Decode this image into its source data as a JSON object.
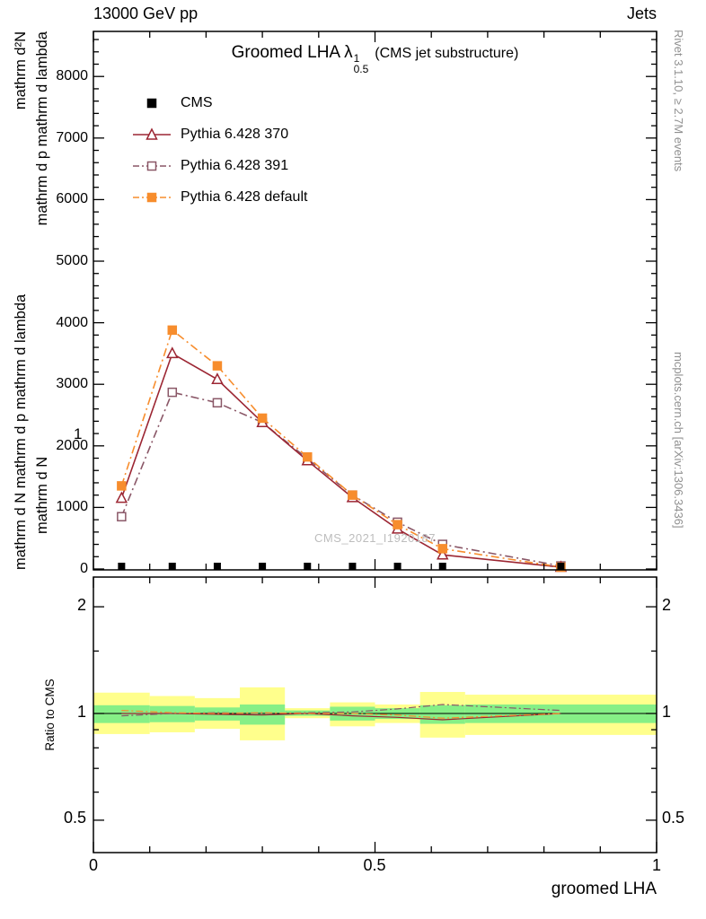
{
  "header": {
    "left_label": "13000 GeV pp",
    "right_label": "Jets"
  },
  "title": {
    "prefix": "Groomed LHA",
    "lambda": "λ",
    "sup": "1",
    "sub": "0.5",
    "suffix": "(CMS jet substructure)"
  },
  "ylabel": {
    "outer_bottom": "mathrm d N mathrm d p mathrm d lambda",
    "outer_top": "mathrm d²N",
    "inner_bottom": "mathrm d N",
    "inner_top": "mathrm d p mathrm d lambda",
    "frac_one": "1"
  },
  "right_margin": {
    "top_text": "Rivet 3.1.10, ≥ 2.7M events",
    "bottom_text": "mcplots.cern.ch [arXiv:1306.3436]"
  },
  "watermark": "CMS_2021_I1920187",
  "xaxis": {
    "label": "groomed LHA",
    "tick_labels": [
      "0",
      "0.5",
      "1"
    ],
    "ticks": [
      0,
      0.5,
      1
    ]
  },
  "ratio_panel": {
    "ylabel": "Ratio to CMS",
    "ytick_labels": [
      "2",
      "1",
      "0.5"
    ],
    "yticks": [
      2,
      1,
      0.5
    ]
  },
  "colors": {
    "cms": "#000000",
    "pythia_370": "#9c2633",
    "pythia_391": "#8a5767",
    "pythia_default": "#f78d2d",
    "band_yellow": "#ffff8c",
    "band_green": "#86ef86",
    "frame": "#000000",
    "watermark_gray": "#bdbdbd",
    "side_text_gray": "#909090"
  },
  "chart_data": {
    "type": "line",
    "title": "Groomed LHA lambda_0.5^1 (CMS jet substructure)",
    "xlabel": "groomed LHA",
    "xlim": [
      0,
      1
    ],
    "ylim": [
      0,
      8732
    ],
    "yticks": [
      0,
      1000,
      2000,
      3000,
      4000,
      5000,
      6000,
      7000,
      8000
    ],
    "ytick_labels": [
      "0",
      "1000",
      "2000",
      "3000",
      "4000",
      "5000",
      "6000",
      "7000",
      "8000"
    ],
    "x": [
      0.05,
      0.14,
      0.22,
      0.3,
      0.38,
      0.46,
      0.54,
      0.62,
      0.83
    ],
    "series": [
      {
        "name": "CMS",
        "color": "#000000",
        "marker": "square",
        "marker_filled": true,
        "line": "none",
        "values": [
          0,
          0,
          0,
          0,
          0,
          0,
          0,
          0,
          0
        ]
      },
      {
        "name": "Pythia 6.428 370",
        "color": "#9c2633",
        "marker": "triangle",
        "marker_filled": false,
        "line": "solid",
        "values": [
          1150,
          3500,
          3080,
          2380,
          1760,
          1160,
          650,
          230,
          30
        ]
      },
      {
        "name": "Pythia 6.428 391",
        "color": "#8a5767",
        "marker": "square",
        "marker_filled": false,
        "line": "dashdot",
        "values": [
          850,
          2870,
          2700,
          2380,
          1790,
          1200,
          760,
          400,
          50
        ]
      },
      {
        "name": "Pythia 6.428 default",
        "color": "#f78d2d",
        "marker": "square",
        "marker_filled": true,
        "line": "dashdot",
        "values": [
          1350,
          3880,
          3300,
          2450,
          1820,
          1200,
          720,
          330,
          30
        ]
      }
    ],
    "ratio": {
      "yscale": "log",
      "ylim": [
        0.41,
        2.43
      ],
      "yticks": [
        0.5,
        1,
        2
      ],
      "bands": [
        {
          "x0": 0.0,
          "x1": 0.1,
          "yellow": [
            0.875,
            1.145
          ],
          "green": [
            0.94,
            1.055
          ]
        },
        {
          "x0": 0.1,
          "x1": 0.18,
          "yellow": [
            0.885,
            1.12
          ],
          "green": [
            0.945,
            1.05
          ]
        },
        {
          "x0": 0.18,
          "x1": 0.26,
          "yellow": [
            0.905,
            1.105
          ],
          "green": [
            0.955,
            1.04
          ]
        },
        {
          "x0": 0.26,
          "x1": 0.34,
          "yellow": [
            0.84,
            1.185
          ],
          "green": [
            0.93,
            1.06
          ]
        },
        {
          "x0": 0.34,
          "x1": 0.42,
          "yellow": [
            0.97,
            1.035
          ],
          "green": [
            0.985,
            1.02
          ]
        },
        {
          "x0": 0.42,
          "x1": 0.5,
          "yellow": [
            0.92,
            1.075
          ],
          "green": [
            0.955,
            1.045
          ]
        },
        {
          "x0": 0.5,
          "x1": 0.58,
          "yellow": [
            0.94,
            1.06
          ],
          "green": [
            0.965,
            1.035
          ]
        },
        {
          "x0": 0.58,
          "x1": 0.66,
          "yellow": [
            0.855,
            1.15
          ],
          "green": [
            0.935,
            1.055
          ]
        },
        {
          "x0": 0.66,
          "x1": 1.0,
          "yellow": [
            0.87,
            1.13
          ],
          "green": [
            0.94,
            1.06
          ]
        }
      ],
      "series": [
        {
          "name": "Pythia 6.428 370",
          "color": "#9c2633",
          "dash": "solid",
          "values": [
            1.0,
            1.0,
            0.995,
            0.99,
            1.0,
            0.985,
            0.975,
            0.96,
            1.0
          ]
        },
        {
          "name": "Pythia 6.428 391",
          "color": "#8a5767",
          "dash": "dashdot",
          "values": [
            0.985,
            1.0,
            1.005,
            1.0,
            1.005,
            1.01,
            1.03,
            1.06,
            1.02
          ]
        },
        {
          "name": "Pythia 6.428 default",
          "color": "#f78d2d",
          "dash": "dashdot",
          "values": [
            1.02,
            1.005,
            1.0,
            1.005,
            1.0,
            1.0,
            0.99,
            0.97,
            1.0
          ]
        }
      ]
    }
  }
}
